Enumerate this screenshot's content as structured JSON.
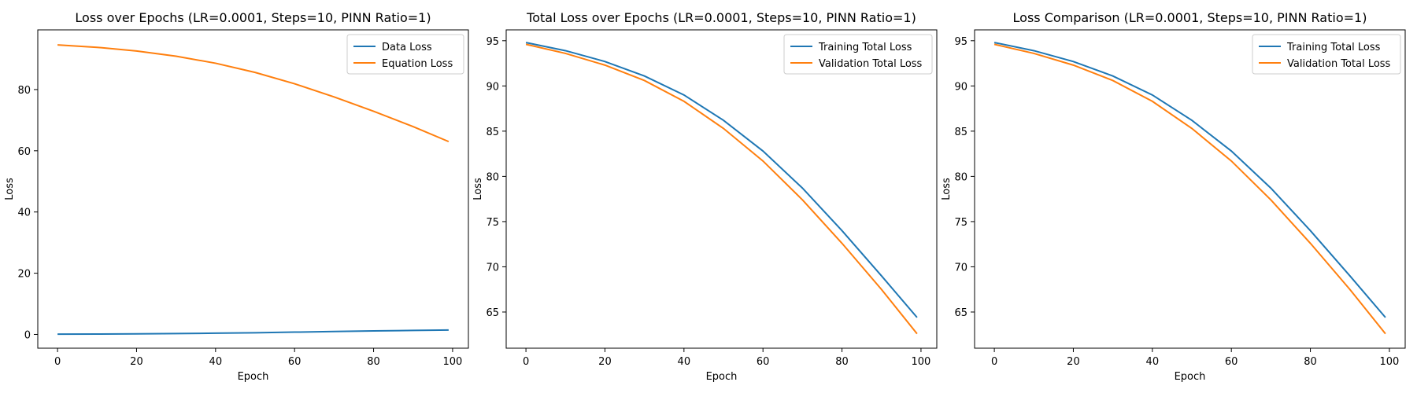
{
  "chart_data": [
    {
      "type": "line",
      "title": "Loss over Epochs (LR=0.0001, Steps=10, PINN Ratio=1)",
      "xlabel": "Epoch",
      "ylabel": "Loss",
      "xlim": [
        -5,
        104
      ],
      "ylim": [
        -4.5,
        99.5
      ],
      "xticks": [
        0,
        20,
        40,
        60,
        80,
        100
      ],
      "yticks": [
        0,
        20,
        40,
        60,
        80
      ],
      "grid": false,
      "legend": "top-right",
      "series": [
        {
          "name": "Data Loss",
          "color": "#1f77b4",
          "x": [
            0,
            10,
            20,
            30,
            40,
            50,
            60,
            70,
            80,
            90,
            99
          ],
          "values": [
            0.1,
            0.12,
            0.18,
            0.28,
            0.4,
            0.55,
            0.75,
            0.95,
            1.15,
            1.3,
            1.45
          ]
        },
        {
          "name": "Equation Loss",
          "color": "#ff7f0e",
          "x": [
            0,
            10,
            20,
            30,
            40,
            50,
            60,
            70,
            80,
            90,
            99
          ],
          "values": [
            94.6,
            93.8,
            92.6,
            90.9,
            88.6,
            85.6,
            81.9,
            77.6,
            72.9,
            67.9,
            63.0
          ]
        }
      ]
    },
    {
      "type": "line",
      "title": "Total Loss over Epochs (LR=0.0001, Steps=10, PINN Ratio=1)",
      "xlabel": "Epoch",
      "ylabel": "Loss",
      "xlim": [
        -5,
        104
      ],
      "ylim": [
        61.0,
        96.2
      ],
      "xticks": [
        0,
        20,
        40,
        60,
        80,
        100
      ],
      "yticks": [
        65,
        70,
        75,
        80,
        85,
        90,
        95
      ],
      "grid": false,
      "legend": "top-right",
      "series": [
        {
          "name": "Training Total Loss",
          "color": "#1f77b4",
          "x": [
            0,
            10,
            20,
            30,
            40,
            50,
            60,
            70,
            80,
            90,
            99
          ],
          "values": [
            94.8,
            93.9,
            92.7,
            91.1,
            89.0,
            86.2,
            82.8,
            78.7,
            74.0,
            69.0,
            64.4
          ]
        },
        {
          "name": "Validation Total Loss",
          "color": "#ff7f0e",
          "x": [
            0,
            10,
            20,
            30,
            40,
            50,
            60,
            70,
            80,
            90,
            99
          ],
          "values": [
            94.6,
            93.6,
            92.3,
            90.6,
            88.3,
            85.3,
            81.7,
            77.4,
            72.6,
            67.5,
            62.6
          ]
        }
      ]
    },
    {
      "type": "line",
      "title": "Loss Comparison (LR=0.0001, Steps=10, PINN Ratio=1)",
      "xlabel": "Epoch",
      "ylabel": "Loss",
      "xlim": [
        -5,
        104
      ],
      "ylim": [
        61.0,
        96.2
      ],
      "xticks": [
        0,
        20,
        40,
        60,
        80,
        100
      ],
      "yticks": [
        65,
        70,
        75,
        80,
        85,
        90,
        95
      ],
      "grid": false,
      "legend": "top-right",
      "series": [
        {
          "name": "Training Total Loss",
          "color": "#1f77b4",
          "x": [
            0,
            10,
            20,
            30,
            40,
            50,
            60,
            70,
            80,
            90,
            99
          ],
          "values": [
            94.8,
            93.9,
            92.7,
            91.1,
            89.0,
            86.2,
            82.8,
            78.7,
            74.0,
            69.0,
            64.4
          ]
        },
        {
          "name": "Validation Total Loss",
          "color": "#ff7f0e",
          "x": [
            0,
            10,
            20,
            30,
            40,
            50,
            60,
            70,
            80,
            90,
            99
          ],
          "values": [
            94.6,
            93.6,
            92.3,
            90.6,
            88.3,
            85.3,
            81.7,
            77.4,
            72.6,
            67.5,
            62.6
          ]
        }
      ]
    }
  ]
}
